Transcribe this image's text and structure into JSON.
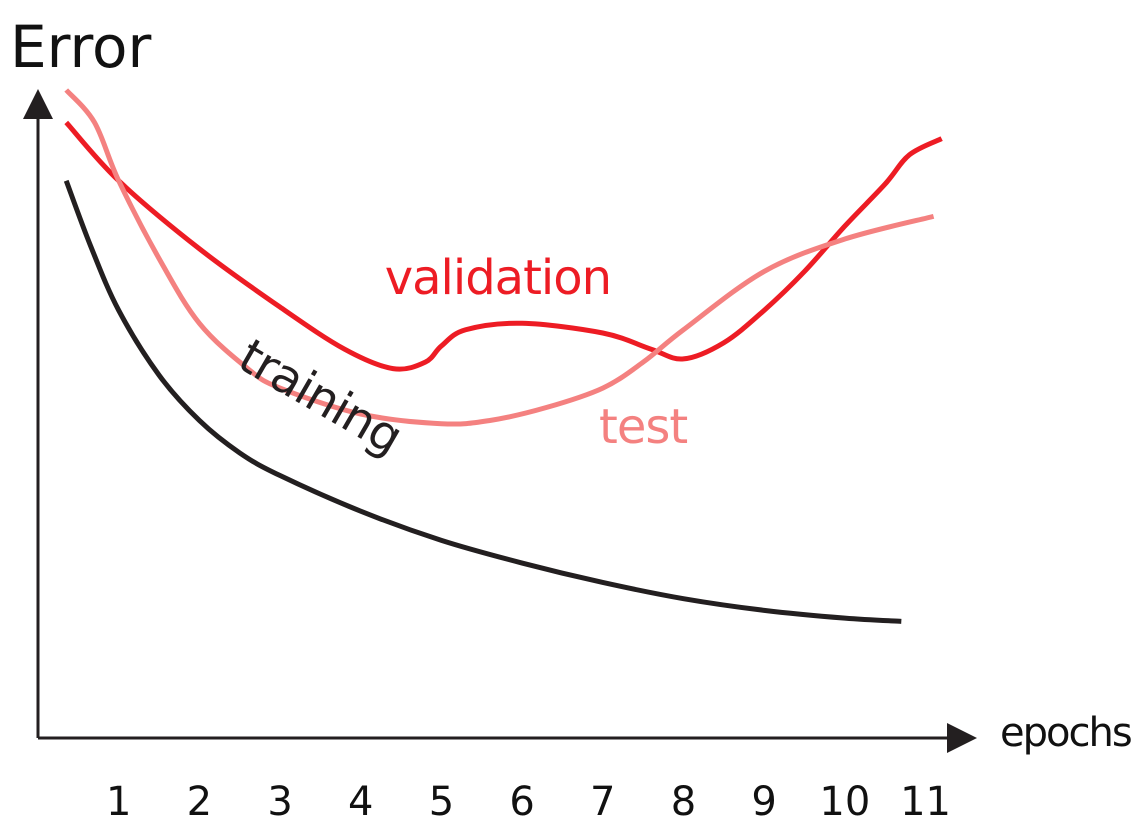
{
  "chart_data": {
    "type": "line",
    "ylabel": "Error",
    "xlabel": "epochs",
    "x_ticks": [
      "1",
      "2",
      "3",
      "4",
      "5",
      "6",
      "7",
      "8",
      "9",
      "10",
      "11"
    ],
    "xlim": [
      0,
      11.7
    ],
    "ylim": [
      0,
      1
    ],
    "grid": false,
    "legend": "inline labels",
    "y_ticks_shown": false,
    "series": [
      {
        "name": "training",
        "color": "#231f20",
        "points": [
          [
            0.35,
            0.86
          ],
          [
            0.65,
            0.76
          ],
          [
            1,
            0.66
          ],
          [
            1.5,
            0.56
          ],
          [
            2,
            0.49
          ],
          [
            2.5,
            0.44
          ],
          [
            3,
            0.405
          ],
          [
            4,
            0.35
          ],
          [
            5,
            0.305
          ],
          [
            6,
            0.27
          ],
          [
            7,
            0.24
          ],
          [
            8,
            0.215
          ],
          [
            9,
            0.197
          ],
          [
            10,
            0.185
          ],
          [
            10.7,
            0.18
          ]
        ]
      },
      {
        "name": "validation",
        "color": "#ed1c24",
        "points": [
          [
            0.35,
            0.95
          ],
          [
            1,
            0.86
          ],
          [
            2,
            0.755
          ],
          [
            3,
            0.665
          ],
          [
            3.8,
            0.6
          ],
          [
            4.4,
            0.57
          ],
          [
            4.8,
            0.58
          ],
          [
            5,
            0.605
          ],
          [
            5.3,
            0.63
          ],
          [
            6,
            0.64
          ],
          [
            7,
            0.625
          ],
          [
            7.6,
            0.6
          ],
          [
            8,
            0.585
          ],
          [
            8.5,
            0.61
          ],
          [
            9,
            0.66
          ],
          [
            9.5,
            0.72
          ],
          [
            10,
            0.79
          ],
          [
            10.5,
            0.855
          ],
          [
            10.8,
            0.9
          ],
          [
            11.2,
            0.925
          ]
        ]
      },
      {
        "name": "test",
        "color": "#f48180",
        "points": [
          [
            0.35,
            1.0
          ],
          [
            0.7,
            0.95
          ],
          [
            1,
            0.86
          ],
          [
            1.5,
            0.74
          ],
          [
            2,
            0.64
          ],
          [
            2.6,
            0.57
          ],
          [
            3,
            0.54
          ],
          [
            4,
            0.5
          ],
          [
            5,
            0.485
          ],
          [
            5.6,
            0.49
          ],
          [
            6.3,
            0.51
          ],
          [
            7,
            0.54
          ],
          [
            7.5,
            0.58
          ],
          [
            8,
            0.63
          ],
          [
            9,
            0.72
          ],
          [
            10,
            0.77
          ],
          [
            11.1,
            0.805
          ]
        ]
      }
    ],
    "annotations": [
      {
        "text": "validation",
        "series": "validation",
        "x": 5.7,
        "y": 0.685
      },
      {
        "text": "test",
        "series": "test",
        "x": 7.5,
        "y": 0.455
      },
      {
        "text": "training",
        "series": "training",
        "x": 3.4,
        "y": 0.505,
        "rotation": 30
      }
    ]
  }
}
